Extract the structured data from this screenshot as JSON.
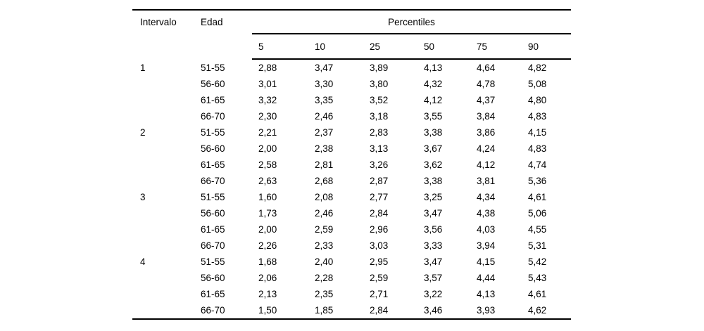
{
  "table": {
    "headers": {
      "intervalo": "Intervalo",
      "edad": "Edad",
      "percentiles_group": "Percentiles"
    },
    "percentile_labels": [
      "5",
      "10",
      "25",
      "50",
      "75",
      "90"
    ],
    "rows": [
      {
        "intervalo": "1",
        "edad": "51-55",
        "values": [
          "2,88",
          "3,47",
          "3,89",
          "4,13",
          "4,64",
          "4,82"
        ]
      },
      {
        "intervalo": "",
        "edad": "56-60",
        "values": [
          "3,01",
          "3,30",
          "3,80",
          "4,32",
          "4,78",
          "5,08"
        ]
      },
      {
        "intervalo": "",
        "edad": "61-65",
        "values": [
          "3,32",
          "3,35",
          "3,52",
          "4,12",
          "4,37",
          "4,80"
        ]
      },
      {
        "intervalo": "",
        "edad": "66-70",
        "values": [
          "2,30",
          "2,46",
          "3,18",
          "3,55",
          "3,84",
          "4,83"
        ]
      },
      {
        "intervalo": "2",
        "edad": "51-55",
        "values": [
          "2,21",
          "2,37",
          "2,83",
          "3,38",
          "3,86",
          "4,15"
        ]
      },
      {
        "intervalo": "",
        "edad": "56-60",
        "values": [
          "2,00",
          "2,38",
          "3,13",
          "3,67",
          "4,24",
          "4,83"
        ]
      },
      {
        "intervalo": "",
        "edad": "61-65",
        "values": [
          "2,58",
          "2,81",
          "3,26",
          "3,62",
          "4,12",
          "4,74"
        ]
      },
      {
        "intervalo": "",
        "edad": "66-70",
        "values": [
          "2,63",
          "2,68",
          "2,87",
          "3,38",
          "3,81",
          "5,36"
        ]
      },
      {
        "intervalo": "3",
        "edad": "51-55",
        "values": [
          "1,60",
          "2,08",
          "2,77",
          "3,25",
          "4,34",
          "4,61"
        ]
      },
      {
        "intervalo": "",
        "edad": "56-60",
        "values": [
          "1,73",
          "2,46",
          "2,84",
          "3,47",
          "4,38",
          "5,06"
        ]
      },
      {
        "intervalo": "",
        "edad": "61-65",
        "values": [
          "2,00",
          "2,59",
          "2,96",
          "3,56",
          "4,03",
          "4,55"
        ]
      },
      {
        "intervalo": "",
        "edad": "66-70",
        "values": [
          "2,26",
          "2,33",
          "3,03",
          "3,33",
          "3,94",
          "5,31"
        ]
      },
      {
        "intervalo": "4",
        "edad": "51-55",
        "values": [
          "1,68",
          "2,40",
          "2,95",
          "3,47",
          "4,15",
          "5,42"
        ]
      },
      {
        "intervalo": "",
        "edad": "56-60",
        "values": [
          "2,06",
          "2,28",
          "2,59",
          "3,57",
          "4,44",
          "5,43"
        ]
      },
      {
        "intervalo": "",
        "edad": "61-65",
        "values": [
          "2,13",
          "2,35",
          "2,71",
          "3,22",
          "4,13",
          "4,61"
        ]
      },
      {
        "intervalo": "",
        "edad": "66-70",
        "values": [
          "1,50",
          "1,85",
          "2,84",
          "3,46",
          "3,93",
          "4,62"
        ]
      }
    ]
  },
  "colors": {
    "text": "#000000",
    "background": "#ffffff",
    "rule": "#000000"
  }
}
